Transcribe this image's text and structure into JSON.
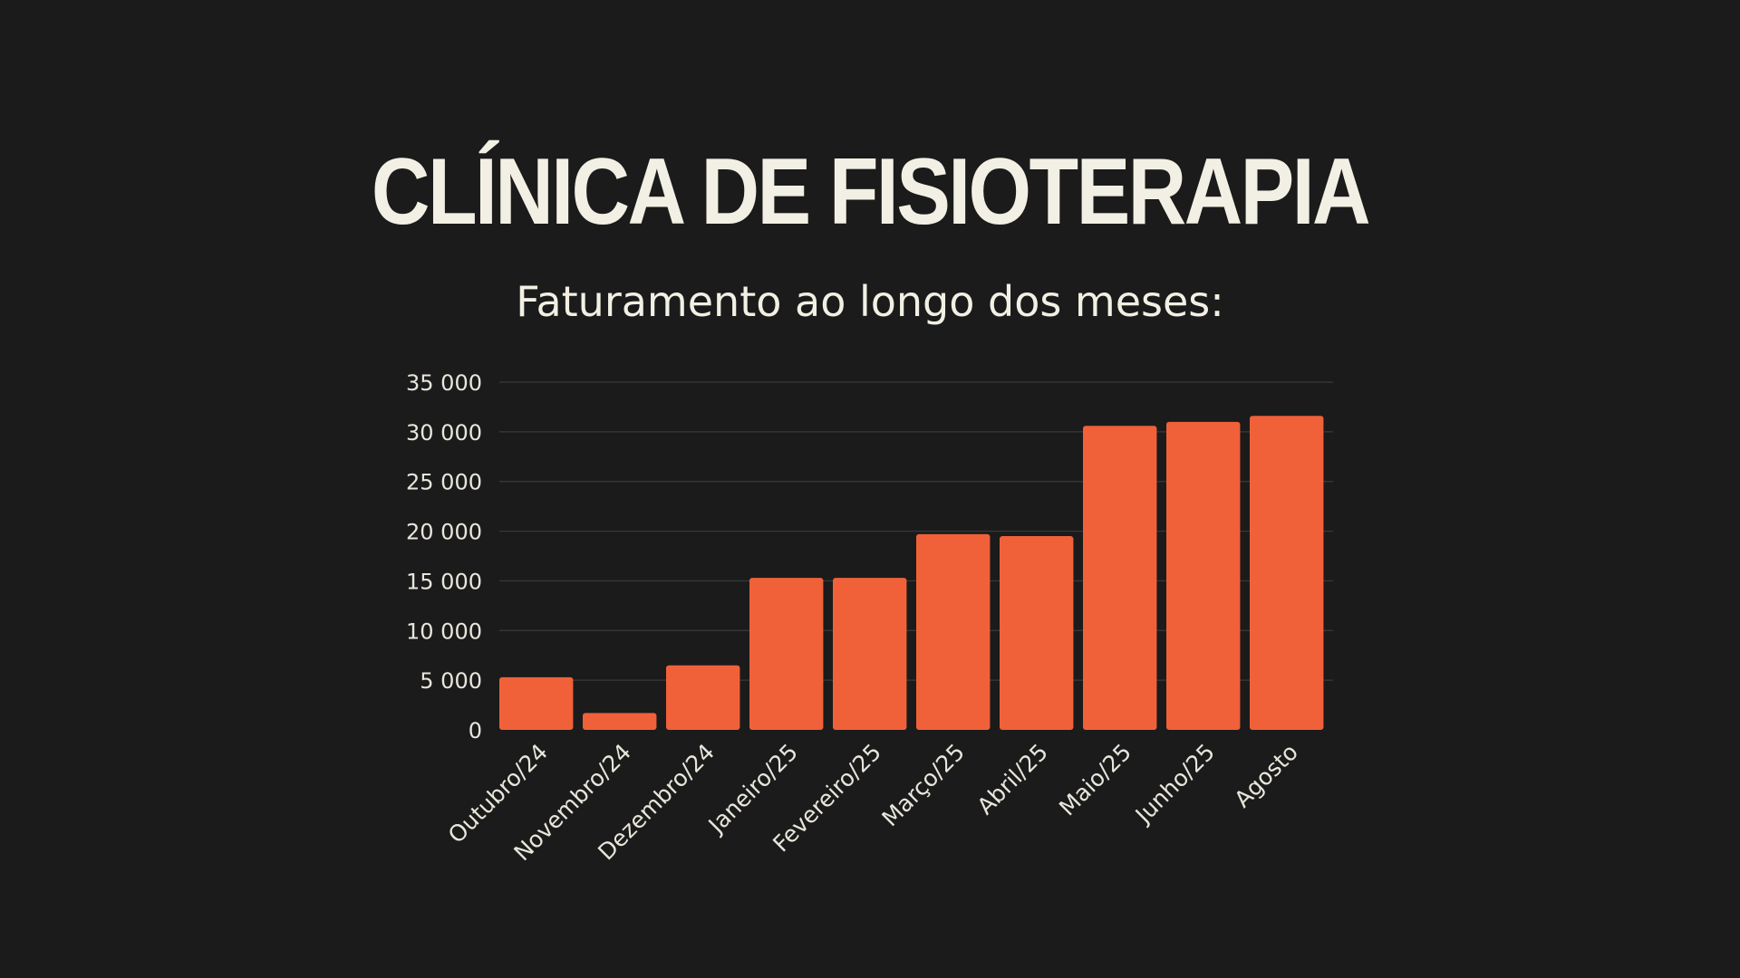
{
  "slide": {
    "title": "CLÍNICA DE FISIOTERAPIA",
    "subtitle": "Faturamento ao longo dos meses:"
  },
  "colors": {
    "background": "#1b1b1b",
    "text": "#f2f0e4",
    "bar": "#f0613a",
    "grid": "#3a3a3a"
  },
  "chart_data": {
    "type": "bar",
    "title": "",
    "xlabel": "",
    "ylabel": "",
    "categories": [
      "Outubro/24",
      "Novembro/24",
      "Dezembro/24",
      "Janeiro/25",
      "Fevereiro/25",
      "Março/25",
      "Abril/25",
      "Maio/25",
      "Junho/25",
      "Agosto"
    ],
    "values": [
      5300,
      1700,
      6500,
      15300,
      15300,
      19700,
      19500,
      30600,
      31000,
      31600
    ],
    "ylim": [
      0,
      35000
    ],
    "yticks": [
      0,
      5000,
      10000,
      15000,
      20000,
      25000,
      30000,
      35000
    ],
    "ytick_labels": [
      "0",
      "5 000",
      "10 000",
      "15 000",
      "20 000",
      "25 000",
      "30 000",
      "35 000"
    ],
    "grid": true,
    "legend": "none"
  }
}
